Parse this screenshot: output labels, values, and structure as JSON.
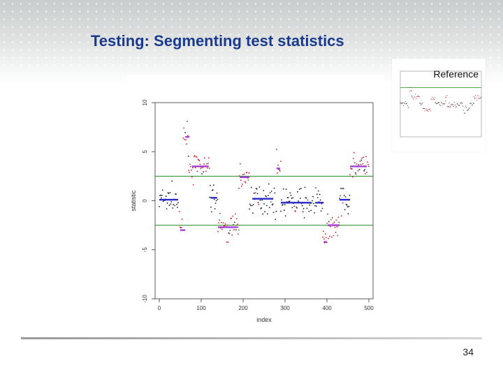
{
  "slide": {
    "title": "Testing: Segmenting test statistics",
    "page_number": "34",
    "reference_label": "Reference"
  },
  "colors": {
    "title": "#1a3a8c",
    "threshold_line": "#1f8a1f",
    "point_black": "#1a1a1a",
    "point_red": "#cc1f1f",
    "segment_blue": "#2828c8",
    "segment_purple": "#a33fd6"
  },
  "chart_data": {
    "type": "scatter",
    "title": "",
    "xlabel": "index",
    "ylabel": "statistic",
    "xlim": [
      -10,
      510
    ],
    "ylim": [
      -10,
      10
    ],
    "xticks": [
      0,
      100,
      200,
      300,
      400,
      500
    ],
    "yticks": [
      -10,
      -5,
      0,
      5,
      10
    ],
    "ytick_labels": [
      "-10",
      "-5",
      "0",
      "5",
      "10"
    ],
    "grid": false,
    "thresholds": [
      2.5,
      -2.5
    ],
    "segments": [
      {
        "x": [
          0,
          45
        ],
        "y": 0.1,
        "group": "blue"
      },
      {
        "x": [
          50,
          62
        ],
        "y": -3.0,
        "group": "purple"
      },
      {
        "x": [
          62,
          72
        ],
        "y": 6.5,
        "group": "purple"
      },
      {
        "x": [
          78,
          118
        ],
        "y": 3.5,
        "group": "purple"
      },
      {
        "x": [
          122,
          138
        ],
        "y": 0.3,
        "group": "blue"
      },
      {
        "x": [
          140,
          188
        ],
        "y": -2.7,
        "group": "purple"
      },
      {
        "x": [
          192,
          215
        ],
        "y": 2.4,
        "group": "purple"
      },
      {
        "x": [
          222,
          272
        ],
        "y": 0.2,
        "group": "blue"
      },
      {
        "x": [
          280,
          288
        ],
        "y": 3.3,
        "group": "purple"
      },
      {
        "x": [
          290,
          362
        ],
        "y": -0.2,
        "group": "blue"
      },
      {
        "x": [
          372,
          392
        ],
        "y": -0.2,
        "group": "blue"
      },
      {
        "x": [
          392,
          400
        ],
        "y": -4.2,
        "group": "purple"
      },
      {
        "x": [
          402,
          430
        ],
        "y": -2.5,
        "group": "purple"
      },
      {
        "x": [
          430,
          455
        ],
        "y": 0.1,
        "group": "blue"
      },
      {
        "x": [
          455,
          495
        ],
        "y": 3.5,
        "group": "purple"
      }
    ],
    "segment_means": [
      {
        "x": [
          0,
          45
        ],
        "y": 0.1
      },
      {
        "x": [
          48,
          55
        ],
        "y": -3.0
      },
      {
        "x": [
          57,
          70
        ],
        "y": 6.5
      },
      {
        "x": [
          70,
          120
        ],
        "y": 3.4
      },
      {
        "x": [
          120,
          140
        ],
        "y": 0.3
      },
      {
        "x": [
          140,
          190
        ],
        "y": -2.8
      },
      {
        "x": [
          190,
          215
        ],
        "y": 2.4
      },
      {
        "x": [
          215,
          280
        ],
        "y": 0.2
      },
      {
        "x": [
          280,
          290
        ],
        "y": 3.3
      },
      {
        "x": [
          290,
          390
        ],
        "y": -0.2
      },
      {
        "x": [
          390,
          400
        ],
        "y": -4.2
      },
      {
        "x": [
          400,
          430
        ],
        "y": -2.5
      },
      {
        "x": [
          430,
          455
        ],
        "y": 0.1
      },
      {
        "x": [
          455,
          500
        ],
        "y": 3.5
      }
    ],
    "reference": {
      "type": "scatter",
      "xlim": [
        0,
        500
      ],
      "ylim": [
        -10,
        10
      ],
      "threshold": 5
    }
  }
}
